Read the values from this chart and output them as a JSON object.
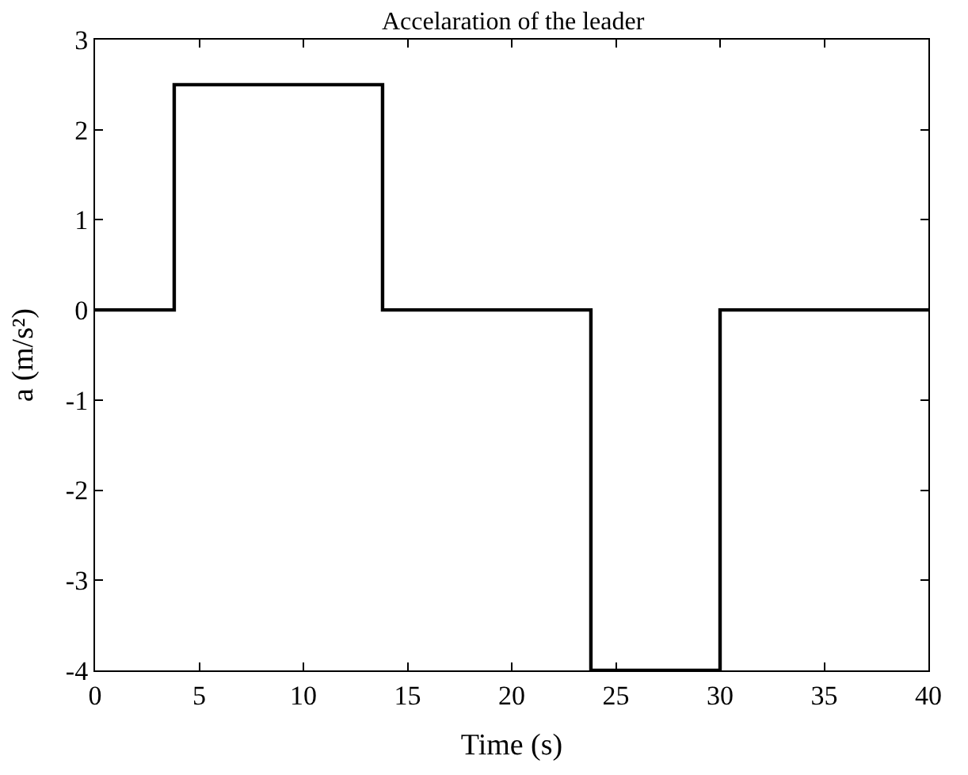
{
  "chart_data": {
    "type": "step",
    "title": "Accelaration of the leader",
    "xlabel": "Time (s)",
    "ylabel": "a (m/s²)",
    "x": [
      0,
      3.8,
      13.8,
      23.8,
      30,
      40
    ],
    "series": [
      {
        "color": "#000000",
        "values": [
          0,
          2.5,
          0,
          -4,
          0,
          0
        ]
      }
    ],
    "xlim": [
      0,
      40
    ],
    "xticks": [
      0,
      5,
      10,
      15,
      20,
      25,
      30,
      35,
      40
    ],
    "ylim": [
      -4,
      3
    ],
    "yticks": [
      -4,
      -3,
      -2,
      -1,
      0,
      1,
      2,
      3
    ],
    "marker": "none",
    "line_style": "solid"
  }
}
